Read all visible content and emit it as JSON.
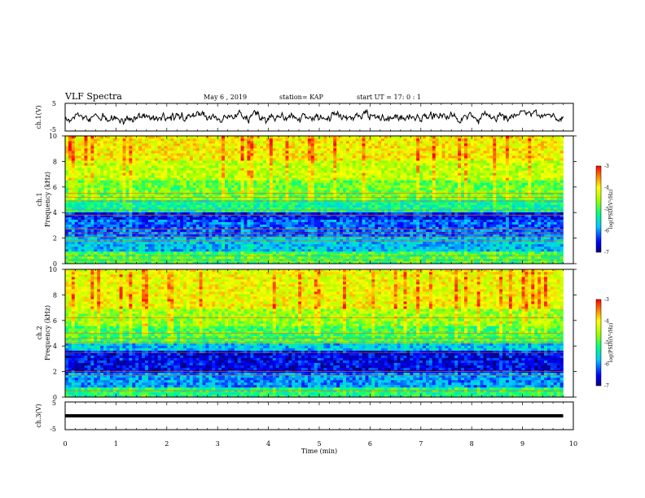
{
  "header": {
    "title": "VLF Spectra",
    "date": "May 6  , 2019",
    "station": "station= KAP",
    "start": "start  UT  =   17: 0  : 1"
  },
  "chart_data": [
    {
      "type": "line",
      "panel": "ch1-waveform",
      "ylabel": "ch.1(V)",
      "ylim": [
        -5,
        5
      ],
      "yticks": [
        "5",
        "-5"
      ],
      "xlim": [
        0,
        10
      ],
      "note_values": "signal fluctuates roughly between -2.5 V and 3 V over 0-9.8 min",
      "values_range": [
        -2.5,
        3.0
      ]
    },
    {
      "type": "heatmap",
      "panel": "ch1-spectrogram",
      "ylabel": "ch.1\nFrequency  (kHz)",
      "ylim": [
        0,
        10
      ],
      "yticks": [
        "0",
        "2",
        "4",
        "6",
        "8",
        "10"
      ],
      "xlim": [
        0,
        10
      ],
      "data_end_min": 9.8,
      "colorbar": {
        "label": "log(PSD)(V²/Hz)",
        "range": [
          -7,
          -3
        ],
        "ticks": [
          "-3",
          "-4",
          "-5",
          "-6",
          "-7"
        ]
      },
      "bands_khz": [
        {
          "from": 0.0,
          "to": 1.0,
          "level": -5.0
        },
        {
          "from": 1.0,
          "to": 2.2,
          "level": -5.8
        },
        {
          "from": 2.2,
          "to": 3.4,
          "level": -6.2
        },
        {
          "from": 3.4,
          "to": 4.0,
          "level": -6.5
        },
        {
          "from": 4.0,
          "to": 5.0,
          "level": -5.3
        },
        {
          "from": 5.0,
          "to": 6.5,
          "level": -4.8
        },
        {
          "from": 6.5,
          "to": 8.0,
          "level": -4.4
        },
        {
          "from": 8.0,
          "to": 10.0,
          "level": -4.0
        }
      ],
      "lines_khz": [
        5.5,
        5.2,
        4.9,
        4.2,
        3.8,
        2.7,
        2.4,
        2.1,
        1.8,
        0.6,
        0.3
      ]
    },
    {
      "type": "heatmap",
      "panel": "ch2-spectrogram",
      "ylabel": "ch.2\nFrequency  (kHz)",
      "ylim": [
        0,
        10
      ],
      "yticks": [
        "0",
        "2",
        "4",
        "6",
        "8",
        "10"
      ],
      "xlim": [
        0,
        10
      ],
      "data_end_min": 9.8,
      "colorbar": {
        "label": "log(PSD)(V²/Hz)",
        "range": [
          -7,
          -3
        ],
        "ticks": [
          "-3",
          "-4",
          "-5",
          "-6",
          "-7"
        ]
      },
      "bands_khz": [
        {
          "from": 0.0,
          "to": 0.8,
          "level": -5.2
        },
        {
          "from": 0.8,
          "to": 2.0,
          "level": -6.0
        },
        {
          "from": 2.0,
          "to": 3.6,
          "level": -6.6
        },
        {
          "from": 3.6,
          "to": 4.2,
          "level": -5.8
        },
        {
          "from": 4.2,
          "to": 5.5,
          "level": -5.0
        },
        {
          "from": 5.5,
          "to": 7.0,
          "level": -4.6
        },
        {
          "from": 7.0,
          "to": 10.0,
          "level": -4.1
        }
      ],
      "lines_khz": [
        6.2,
        5.0,
        4.6,
        4.3,
        3.5,
        2.0,
        1.7,
        0.5
      ]
    },
    {
      "type": "line",
      "panel": "ch3-waveform",
      "ylabel": "ch.3(V)",
      "ylim": [
        -5,
        5
      ],
      "yticks": [
        "5",
        "-5"
      ],
      "xlim": [
        0,
        10
      ],
      "values_constant": 0
    }
  ],
  "xaxis": {
    "label": "Time  (min)",
    "ticks": [
      "0",
      "1",
      "2",
      "3",
      "4",
      "5",
      "6",
      "7",
      "8",
      "9",
      "10"
    ]
  }
}
